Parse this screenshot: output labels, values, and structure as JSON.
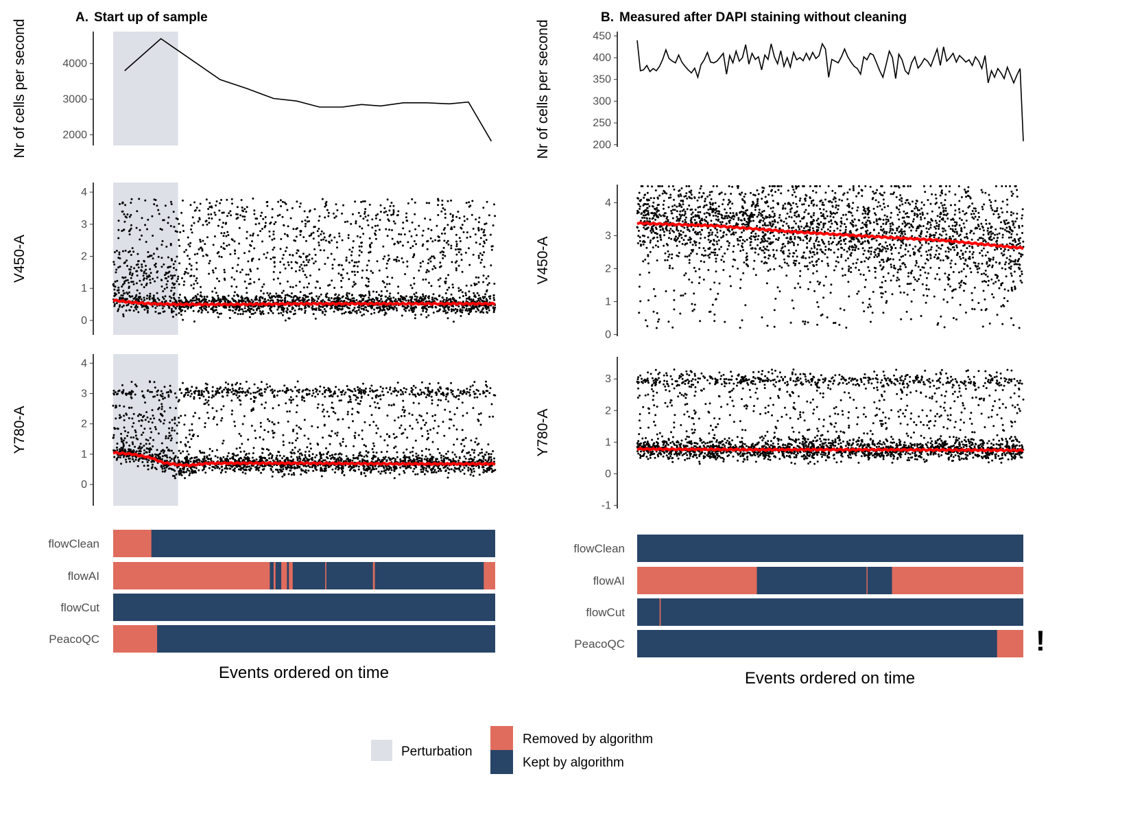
{
  "colors": {
    "perturbation": "#dde0e7",
    "removed": "#e06c5d",
    "kept": "#284467",
    "line": "#000000",
    "trend": "#ff0000"
  },
  "chart_data": [
    {
      "panel": "A",
      "title_letter": "A.",
      "title": "Start up of sample",
      "xlabel": "Events ordered on time",
      "perturbation_x": [
        0,
        0.17
      ],
      "subplots": [
        {
          "type": "line",
          "ylabel": "Nr of cells per second",
          "ylim": [
            1700,
            4900
          ],
          "ticks": [
            2000,
            3000,
            4000
          ],
          "x": [
            0.03,
            0.125,
            0.28,
            0.35,
            0.42,
            0.48,
            0.54,
            0.6,
            0.65,
            0.7,
            0.76,
            0.82,
            0.88,
            0.93,
            0.99
          ],
          "y": [
            3800,
            4700,
            3550,
            3300,
            3020,
            2950,
            2780,
            2780,
            2850,
            2810,
            2900,
            2900,
            2870,
            2920,
            1820
          ]
        },
        {
          "type": "scatter",
          "ylabel": "V450-A",
          "ylim": [
            -0.45,
            4.3
          ],
          "ticks": [
            0,
            1,
            2,
            3,
            4
          ],
          "trend": [
            [
              0,
              0.63
            ],
            [
              0.05,
              0.56
            ],
            [
              0.1,
              0.52
            ],
            [
              0.17,
              0.5
            ],
            [
              0.3,
              0.5
            ],
            [
              0.5,
              0.52
            ],
            [
              0.7,
              0.52
            ],
            [
              1,
              0.52
            ]
          ],
          "dense_base": 0.5,
          "sparse_range": [
            1.0,
            3.8
          ]
        },
        {
          "type": "scatter",
          "ylabel": "Y780-A",
          "ylim": [
            -0.7,
            4.3
          ],
          "ticks": [
            0,
            1,
            2,
            3,
            4
          ],
          "trend": [
            [
              0,
              1.05
            ],
            [
              0.05,
              1.0
            ],
            [
              0.1,
              0.88
            ],
            [
              0.13,
              0.72
            ],
            [
              0.17,
              0.65
            ],
            [
              0.2,
              0.63
            ],
            [
              0.25,
              0.7
            ],
            [
              0.5,
              0.7
            ],
            [
              0.75,
              0.68
            ],
            [
              1,
              0.68
            ]
          ],
          "dense_base": 0.68,
          "band": 3.05,
          "sparse_range": [
            1.0,
            3.4
          ]
        }
      ],
      "algorithms": [
        {
          "name": "flowClean",
          "removed": [
            [
              0,
              0.1
            ]
          ]
        },
        {
          "name": "flowAI",
          "removed": [
            [
              0,
              0.41
            ],
            [
              0.42,
              0.425
            ],
            [
              0.44,
              0.455
            ],
            [
              0.46,
              0.47
            ],
            [
              0.555,
              0.558
            ],
            [
              0.68,
              0.685
            ],
            [
              0.97,
              1.0
            ]
          ]
        },
        {
          "name": "flowCut",
          "removed": []
        },
        {
          "name": "PeacoQC",
          "removed": [
            [
              0,
              0.115
            ]
          ]
        }
      ]
    },
    {
      "panel": "B",
      "title_letter": "B.",
      "title": "Measured after DAPI staining without cleaning",
      "xlabel": "Events ordered on time",
      "warning": "!",
      "subplots": [
        {
          "type": "line",
          "ylabel": "Nr of cells per second",
          "ylim": [
            195,
            460
          ],
          "ticks": [
            200,
            250,
            300,
            350,
            400,
            450
          ],
          "y": [
            440,
            370,
            372,
            382,
            368,
            375,
            370,
            380,
            396,
            418,
            398,
            392,
            388,
            406,
            390,
            380,
            372,
            365,
            376,
            355,
            384,
            395,
            412,
            390,
            388,
            392,
            401,
            410,
            362,
            405,
            388,
            415,
            392,
            400,
            430,
            385,
            410,
            396,
            402,
            372,
            406,
            396,
            432,
            402,
            386,
            416,
            380,
            400,
            378,
            412,
            395,
            400,
            393,
            410,
            395,
            412,
            398,
            405,
            432,
            420,
            355,
            396,
            392,
            388,
            402,
            420,
            402,
            390,
            380,
            375,
            362,
            402,
            395,
            410,
            406,
            388,
            370,
            355,
            384,
            415,
            400,
            352,
            408,
            395,
            370,
            362,
            388,
            402,
            376,
            385,
            398,
            392,
            380,
            400,
            420,
            382,
            425,
            392,
            400,
            410,
            390,
            405,
            398,
            390,
            395,
            382,
            402,
            392,
            375,
            405,
            342,
            370,
            355,
            375,
            365,
            352,
            378,
            360,
            342,
            360,
            375,
            208
          ]
        },
        {
          "type": "scatter",
          "ylabel": "V450-A",
          "ylim": [
            -0.05,
            4.55
          ],
          "ticks": [
            0,
            1,
            2,
            3,
            4
          ],
          "trend": [
            [
              0,
              3.38
            ],
            [
              0.2,
              3.3
            ],
            [
              0.4,
              3.12
            ],
            [
              0.6,
              2.98
            ],
            [
              0.8,
              2.85
            ],
            [
              1,
              2.62
            ]
          ],
          "dense_spread": 0.55,
          "sparse_range": [
            0.2,
            4.4
          ]
        },
        {
          "type": "scatter",
          "ylabel": "Y780-A",
          "ylim": [
            -1.1,
            3.7
          ],
          "ticks": [
            -1,
            0,
            1,
            2,
            3
          ],
          "trend": [
            [
              0,
              0.78
            ],
            [
              0.3,
              0.76
            ],
            [
              0.6,
              0.76
            ],
            [
              1,
              0.74
            ]
          ],
          "dense_base": 0.78,
          "band": 2.95,
          "sparse_range": [
            1.0,
            3.3
          ]
        }
      ],
      "algorithms": [
        {
          "name": "flowClean",
          "removed": []
        },
        {
          "name": "flowAI",
          "removed": [
            [
              0,
              0.31
            ],
            [
              0.594,
              0.596
            ],
            [
              0.66,
              1.0
            ]
          ]
        },
        {
          "name": "flowCut",
          "removed": [
            [
              0.058,
              0.061
            ]
          ]
        },
        {
          "name": "PeacoQC",
          "removed": [
            [
              0.932,
              1.0
            ]
          ]
        }
      ]
    }
  ],
  "legend": {
    "perturbation": "Perturbation",
    "removed": "Removed by algorithm",
    "kept": "Kept by algorithm"
  }
}
